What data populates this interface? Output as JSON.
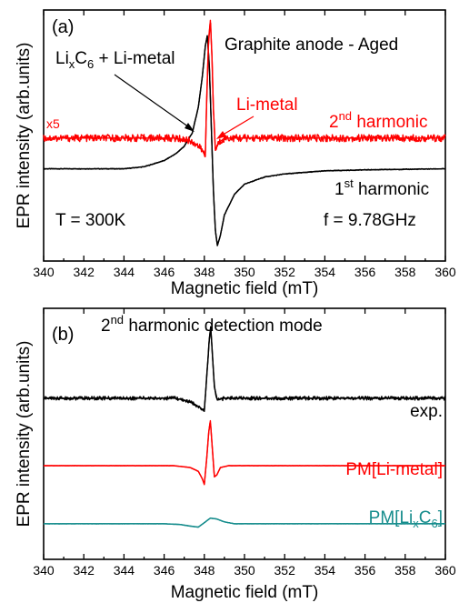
{
  "colors": {
    "black": "#000000",
    "red": "#ff0000",
    "teal": "#158c8c"
  },
  "chart_data": [
    {
      "type": "line",
      "panel_label": "(a)",
      "title": "Graphite anode - Aged",
      "xlabel": "Magnetic field (mT)",
      "ylabel": "EPR intensity (arb.units)",
      "xlim": [
        340,
        360
      ],
      "x_ticks": [
        340,
        342,
        344,
        346,
        348,
        350,
        352,
        354,
        356,
        358,
        360
      ],
      "y_ticks": "none",
      "ylim": [
        -1.2,
        1.25
      ],
      "grid": false,
      "annotations": {
        "species_main": "Li",
        "species_sub_x": "x",
        "species_mid": "C",
        "species_sub_6": "6",
        "species_tail": " + Li-metal",
        "limetal": "Li-metal",
        "scale": "x5",
        "second_harmonic_main": "2",
        "second_harmonic_sup": "nd",
        "second_harmonic_tail": " harmonic",
        "first_harmonic_main": "1",
        "first_harmonic_sup": "st",
        "first_harmonic_tail": " harmonic",
        "temperature": "T = 300K",
        "frequency": "f = 9.78GHz"
      },
      "series": [
        {
          "label": "1st harmonic",
          "color": "#000000",
          "points": [
            [
              340,
              -0.3
            ],
            [
              344,
              -0.3
            ],
            [
              345,
              -0.28
            ],
            [
              346,
              -0.22
            ],
            [
              346.6,
              -0.15
            ],
            [
              347,
              -0.08
            ],
            [
              347.4,
              0.05
            ],
            [
              347.7,
              0.3
            ],
            [
              347.9,
              0.6
            ],
            [
              348.05,
              0.9
            ],
            [
              348.15,
              1.0
            ],
            [
              348.25,
              0.7
            ],
            [
              348.35,
              0.1
            ],
            [
              348.45,
              -0.5
            ],
            [
              348.55,
              -0.9
            ],
            [
              348.65,
              -1.05
            ],
            [
              348.8,
              -0.95
            ],
            [
              349.0,
              -0.75
            ],
            [
              349.5,
              -0.55
            ],
            [
              350,
              -0.45
            ],
            [
              351,
              -0.38
            ],
            [
              352,
              -0.35
            ],
            [
              354,
              -0.32
            ],
            [
              356,
              -0.31
            ],
            [
              360,
              -0.3
            ]
          ]
        },
        {
          "label": "2nd harmonic",
          "color": "#ff0000",
          "points": [
            [
              340,
              0
            ],
            [
              346.5,
              0
            ],
            [
              347.2,
              -0.02
            ],
            [
              347.6,
              -0.06
            ],
            [
              347.9,
              -0.12
            ],
            [
              348.05,
              -0.18
            ],
            [
              348.12,
              0.4
            ],
            [
              348.2,
              0.9
            ],
            [
              348.3,
              1.15
            ],
            [
              348.38,
              0.8
            ],
            [
              348.45,
              0.3
            ],
            [
              348.55,
              -0.12
            ],
            [
              348.7,
              -0.05
            ],
            [
              349,
              0
            ],
            [
              360,
              0
            ]
          ]
        }
      ]
    },
    {
      "type": "line",
      "panel_label": "(b)",
      "title_main": "2",
      "title_sup": "nd",
      "title_tail": " harmonic detection mode",
      "xlabel": "Magnetic field (mT)",
      "ylabel": "EPR intensity (arb.units)",
      "xlim": [
        340,
        360
      ],
      "x_ticks": [
        340,
        342,
        344,
        346,
        348,
        350,
        352,
        354,
        356,
        358,
        360
      ],
      "y_ticks": "none",
      "ylim": [
        -4.3,
        2.4
      ],
      "grid": false,
      "annotations": {
        "exp": "exp.",
        "pm_limetal": "PM[Li-metal]",
        "pm_lixc6_main": "PM[Li",
        "pm_lixc6_sub_x": "x",
        "pm_lixc6_mid": "C",
        "pm_lixc6_sub_6": "6",
        "pm_lixc6_tail": "]"
      },
      "series": [
        {
          "label": "exp.",
          "color": "#000000",
          "points": [
            [
              340,
              0
            ],
            [
              346.5,
              0
            ],
            [
              347,
              -0.05
            ],
            [
              347.5,
              -0.15
            ],
            [
              347.8,
              -0.25
            ],
            [
              348.0,
              -0.35
            ],
            [
              348.15,
              0.8
            ],
            [
              348.25,
              1.6
            ],
            [
              348.32,
              1.9
            ],
            [
              348.4,
              1.2
            ],
            [
              348.5,
              0.3
            ],
            [
              348.65,
              -0.05
            ],
            [
              349,
              0
            ],
            [
              360,
              0
            ]
          ]
        },
        {
          "label": "PM[Li-metal]",
          "color": "#ff0000",
          "points": [
            [
              340,
              -1.8
            ],
            [
              346.5,
              -1.8
            ],
            [
              347.3,
              -1.85
            ],
            [
              347.7,
              -1.95
            ],
            [
              347.9,
              -2.15
            ],
            [
              348.0,
              -2.3
            ],
            [
              348.12,
              -1.6
            ],
            [
              348.22,
              -0.9
            ],
            [
              348.3,
              -0.6
            ],
            [
              348.38,
              -1.2
            ],
            [
              348.5,
              -2.1
            ],
            [
              348.62,
              -2.05
            ],
            [
              348.8,
              -1.85
            ],
            [
              349.2,
              -1.8
            ],
            [
              360,
              -1.8
            ]
          ]
        },
        {
          "label": "PM[LixC6]",
          "color": "#158c8c",
          "points": [
            [
              340,
              -3.35
            ],
            [
              346,
              -3.35
            ],
            [
              346.8,
              -3.37
            ],
            [
              347.4,
              -3.42
            ],
            [
              347.7,
              -3.44
            ],
            [
              348.0,
              -3.32
            ],
            [
              348.3,
              -3.2
            ],
            [
              348.6,
              -3.22
            ],
            [
              349.0,
              -3.3
            ],
            [
              349.5,
              -3.35
            ],
            [
              360,
              -3.35
            ]
          ]
        }
      ]
    }
  ]
}
